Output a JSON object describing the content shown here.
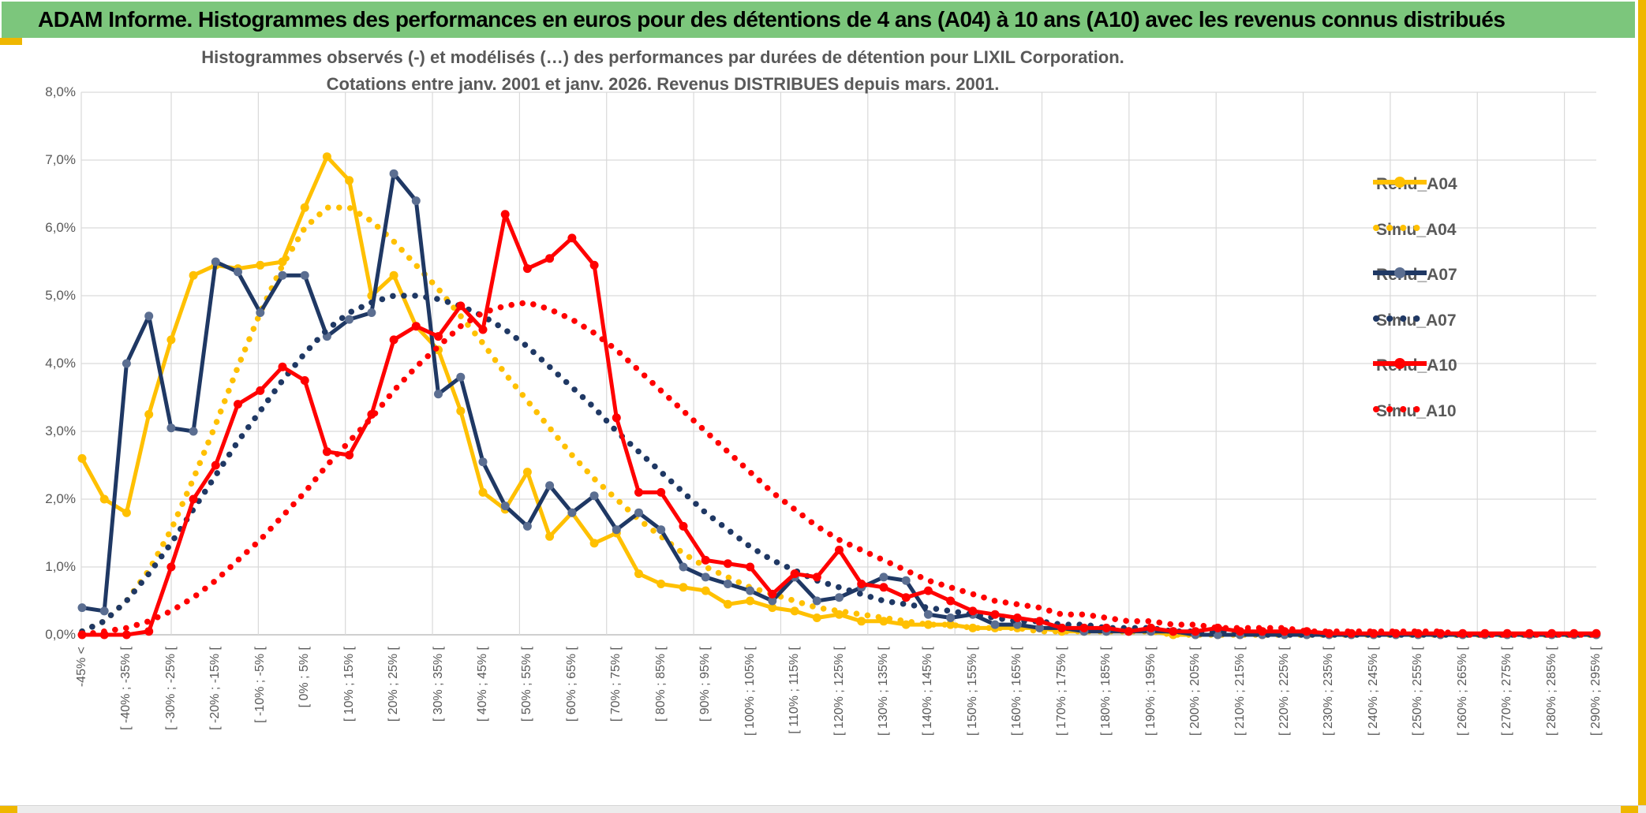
{
  "header": {
    "title": "ADAM Informe. Histogrammes des performances en euros pour des détentions de 4 ans (A04) à 10 ans (A10) avec les revenus connus distribués"
  },
  "colors": {
    "header_green": "#7cc67c",
    "accent_yellow": "#efb700",
    "title_gray": "#595959",
    "grid": "#d9d9d9",
    "axis": "#bfbfbf",
    "gold": "#ffc000",
    "navy": "#1f3864",
    "navy_marker": "#5b6e91",
    "red": "#ff0000"
  },
  "chart_data": {
    "type": "line",
    "title_line1": "Histogrammes observés (-) et modélisés (…) des performances par durées de détention pour LIXIL Corporation.",
    "title_line2": "Cotations entre janv. 2001 et janv. 2026. Revenus DISTRIBUES depuis mars. 2001.",
    "ylabel": "",
    "xlabel": "",
    "ylim": [
      0,
      8
    ],
    "y_tick_labels": [
      "8,0%",
      "7,0%",
      "6,0%",
      "5,0%",
      "4,0%",
      "3,0%",
      "2,0%",
      "1,0%",
      "0,0%"
    ],
    "total_bins": 69,
    "bin_width_pct": 5,
    "label_every_n_bins": 2,
    "grid": "on",
    "legend_position": "right-inside",
    "categories_labeled": [
      "-45% <",
      "[ -40% ; -35% [",
      "[ -30% ; -25% [",
      "[ -20% ; -15% [",
      "[ -10% ; -5% [",
      "[ 0% ; 5% [",
      "[ 10% ; 15% [",
      "[ 20% ; 25% [",
      "[ 30% ; 35% [",
      "[ 40% ; 45% [",
      "[ 50% ; 55% [",
      "[ 60% ; 65% [",
      "[ 70% ; 75% [",
      "[ 80% ; 85% [",
      "[ 90% ; 95% [",
      "[ 100% ; 105% [",
      "[ 110% ; 115% [",
      "[ 120% ; 125% [",
      "[ 130% ; 135% [",
      "[ 140% ; 145% [",
      "[ 150% ; 155% [",
      "[ 160% ; 165% [",
      "[ 170% ; 175% [",
      "[ 180% ; 185% [",
      "[ 190% ; 195% [",
      "[ 200% ; 205% [",
      "[ 210% ; 215% [",
      "[ 220% ; 225% [",
      "[ 230% ; 235% [",
      "[ 240% ; 245% [",
      "[ 250% ; 255% [",
      "[ 260% ; 265% [",
      "[ 270% ; 275% [",
      "[ 280% ; 285% [",
      "[ 290% ; 295% ["
    ],
    "series": [
      {
        "name": "Rend_A04",
        "style": "solid",
        "color": "#ffc000",
        "marker": "#ffc000",
        "values": [
          2.6,
          2.0,
          1.8,
          3.25,
          4.35,
          5.3,
          5.45,
          5.4,
          5.45,
          5.5,
          6.3,
          7.05,
          6.7,
          5.0,
          5.3,
          4.55,
          4.2,
          3.3,
          2.1,
          1.85,
          2.4,
          1.45,
          1.8,
          1.35,
          1.5,
          0.9,
          0.75,
          0.7,
          0.65,
          0.45,
          0.5,
          0.4,
          0.35,
          0.25,
          0.3,
          0.2,
          0.2,
          0.15,
          0.15,
          0.15,
          0.1,
          0.1,
          0.1,
          0.1,
          0.05,
          0.05,
          0.05,
          0.05,
          0.05,
          0,
          0,
          0,
          0,
          0,
          0,
          0,
          0,
          0,
          0,
          0,
          0,
          0,
          0,
          0,
          0,
          0,
          0,
          0,
          0
        ]
      },
      {
        "name": "Simu_A04",
        "style": "dotted",
        "color": "#ffc000",
        "values": [
          0.05,
          0.2,
          0.5,
          0.95,
          1.55,
          2.3,
          3.1,
          3.95,
          4.75,
          5.45,
          6.0,
          6.3,
          6.3,
          6.1,
          5.8,
          5.45,
          5.1,
          4.7,
          4.3,
          3.85,
          3.45,
          3.05,
          2.65,
          2.3,
          2.0,
          1.7,
          1.45,
          1.2,
          1.0,
          0.85,
          0.7,
          0.6,
          0.5,
          0.4,
          0.35,
          0.3,
          0.25,
          0.2,
          0.15,
          0.15,
          0.1,
          0.1,
          0.1,
          0.05,
          0.05,
          0.05,
          0.05,
          0.05,
          0.05,
          0,
          0,
          0,
          0,
          0,
          0,
          0,
          0,
          0,
          0,
          0,
          0,
          0,
          0,
          0,
          0,
          0,
          0,
          0,
          0
        ]
      },
      {
        "name": "Rend_A07",
        "style": "solid",
        "color": "#1f3864",
        "marker": "#5b6e91",
        "values": [
          0.4,
          0.35,
          4.0,
          4.7,
          3.05,
          3.0,
          5.5,
          5.35,
          4.75,
          5.3,
          5.3,
          4.4,
          4.65,
          4.75,
          6.8,
          6.4,
          3.55,
          3.8,
          2.55,
          1.9,
          1.6,
          2.2,
          1.8,
          2.05,
          1.55,
          1.8,
          1.55,
          1.0,
          0.85,
          0.75,
          0.65,
          0.5,
          0.85,
          0.5,
          0.55,
          0.7,
          0.85,
          0.8,
          0.3,
          0.25,
          0.3,
          0.15,
          0.15,
          0.1,
          0.1,
          0.05,
          0.05,
          0.05,
          0.05,
          0.05,
          0,
          0,
          0,
          0,
          0,
          0,
          0,
          0,
          0,
          0,
          0,
          0,
          0,
          0,
          0,
          0,
          0,
          0,
          0
        ]
      },
      {
        "name": "Simu_A07",
        "style": "dotted",
        "color": "#1f3864",
        "values": [
          0.05,
          0.2,
          0.5,
          0.9,
          1.35,
          1.85,
          2.35,
          2.85,
          3.3,
          3.75,
          4.15,
          4.5,
          4.75,
          4.9,
          5.0,
          5.0,
          4.95,
          4.85,
          4.7,
          4.5,
          4.25,
          3.95,
          3.65,
          3.35,
          3.0,
          2.7,
          2.4,
          2.1,
          1.8,
          1.55,
          1.3,
          1.1,
          0.95,
          0.8,
          0.7,
          0.6,
          0.5,
          0.45,
          0.4,
          0.35,
          0.3,
          0.25,
          0.2,
          0.2,
          0.15,
          0.15,
          0.1,
          0.1,
          0.1,
          0.05,
          0.05,
          0.05,
          0.05,
          0,
          0,
          0,
          0,
          0,
          0,
          0,
          0,
          0,
          0,
          0,
          0,
          0,
          0,
          0,
          0
        ]
      },
      {
        "name": "Rend_A10",
        "style": "solid",
        "color": "#ff0000",
        "marker": "#ff0000",
        "values": [
          0,
          0,
          0,
          0.05,
          1.0,
          2.0,
          2.5,
          3.4,
          3.6,
          3.95,
          3.75,
          2.7,
          2.65,
          3.25,
          4.35,
          4.55,
          4.4,
          4.85,
          4.5,
          6.2,
          5.4,
          5.55,
          5.85,
          5.45,
          3.2,
          2.1,
          2.1,
          1.6,
          1.1,
          1.05,
          1.0,
          0.6,
          0.9,
          0.85,
          1.25,
          0.75,
          0.7,
          0.55,
          0.65,
          0.5,
          0.35,
          0.3,
          0.25,
          0.2,
          0.1,
          0.1,
          0.1,
          0.05,
          0.1,
          0.05,
          0.05,
          0.1,
          0.05,
          0.05,
          0.05,
          0.05,
          0.02,
          0.02,
          0.02,
          0.02,
          0.02,
          0.02,
          0.02,
          0.02,
          0.02,
          0.02,
          0.02,
          0.02,
          0.02
        ]
      },
      {
        "name": "Simu_A10",
        "style": "dotted",
        "color": "#ff0000",
        "values": [
          0,
          0.05,
          0.1,
          0.2,
          0.35,
          0.55,
          0.8,
          1.1,
          1.4,
          1.75,
          2.1,
          2.5,
          2.85,
          3.2,
          3.6,
          3.95,
          4.25,
          4.55,
          4.75,
          4.85,
          4.9,
          4.8,
          4.65,
          4.45,
          4.2,
          3.9,
          3.6,
          3.3,
          3.0,
          2.7,
          2.4,
          2.1,
          1.85,
          1.6,
          1.4,
          1.25,
          1.1,
          0.95,
          0.8,
          0.7,
          0.6,
          0.5,
          0.45,
          0.4,
          0.3,
          0.3,
          0.25,
          0.2,
          0.2,
          0.15,
          0.15,
          0.1,
          0.1,
          0.1,
          0.1,
          0.05,
          0.05,
          0.05,
          0.05,
          0.05,
          0.05,
          0.05,
          0,
          0,
          0,
          0,
          0,
          0,
          0
        ]
      }
    ]
  }
}
